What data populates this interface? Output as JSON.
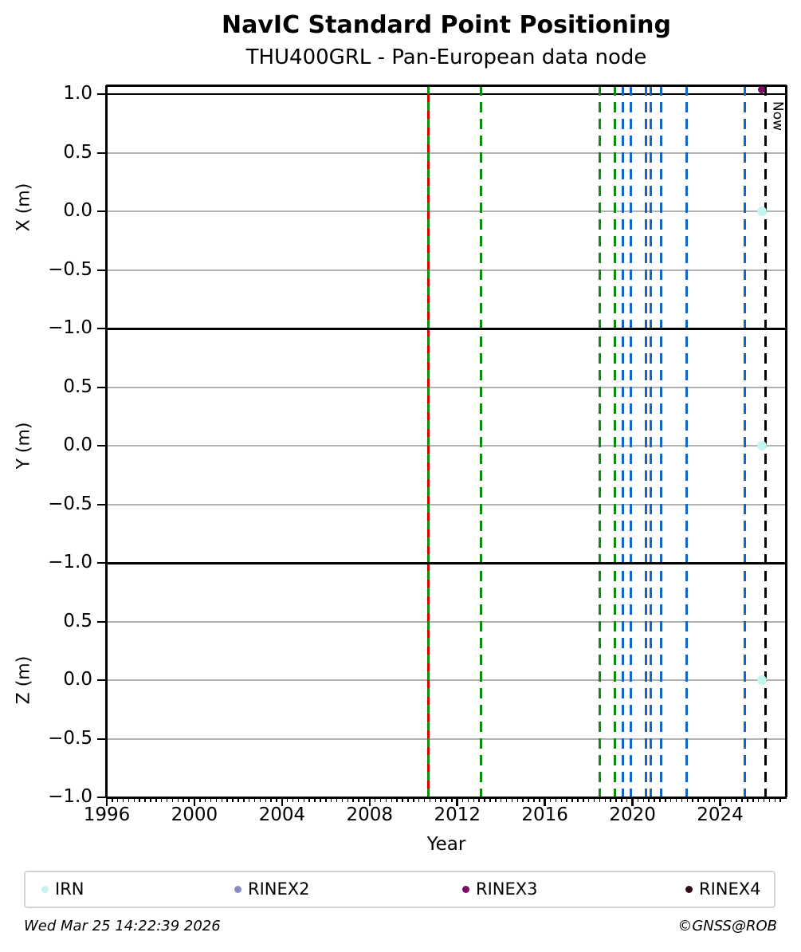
{
  "footer": {
    "timestamp": "Wed Mar 25 14:22:39 2026",
    "credit": "©GNSS@ROB"
  },
  "legend": {
    "items": [
      {
        "label": "IRN",
        "color": "#c4f4ee"
      },
      {
        "label": "RINEX2",
        "color": "#8c8cc2"
      },
      {
        "label": "RINEX3",
        "color": "#7c0a64"
      },
      {
        "label": "RINEX4",
        "color": "#2e0b1d"
      }
    ]
  },
  "chart_data": {
    "type": "scatter",
    "title": "NavIC Standard Point Positioning",
    "subtitle": "THU400GRL - Pan-European data node",
    "xlabel": "Year",
    "xlim": [
      1996,
      2027
    ],
    "x_major_ticks": [
      1996,
      2000,
      2004,
      2008,
      2012,
      2016,
      2020,
      2024
    ],
    "x_minor_step": 0.25,
    "grid_on": true,
    "grid_color": "#b2b2b2",
    "axis_color": "#000000",
    "now_label": "Now",
    "now_x": 2026.08,
    "legend_position": "bottom",
    "subplots": [
      {
        "ylabel": "X (m)",
        "ylim": [
          -1.0,
          1.075
        ],
        "yticks": [
          {
            "v": 1.0,
            "label": "1.0"
          },
          {
            "v": 0.5,
            "label": "0.5"
          },
          {
            "v": 0.0,
            "label": "0.0"
          },
          {
            "v": -0.5,
            "label": "−0.5"
          },
          {
            "v": -1.0,
            "label": "−1.0"
          }
        ],
        "hlines": [
          {
            "y": 1.0,
            "color": "#000000"
          }
        ],
        "points": [
          {
            "x": 2025.9,
            "y": 1.04,
            "series": "RINEX3",
            "size": 9
          },
          {
            "x": 2025.9,
            "y": 0.0,
            "series": "IRN",
            "size": 12
          }
        ]
      },
      {
        "ylabel": "Y (m)",
        "ylim": [
          -1.0,
          1.0
        ],
        "yticks": [
          {
            "v": 0.5,
            "label": "0.5"
          },
          {
            "v": 0.0,
            "label": "0.0"
          },
          {
            "v": -0.5,
            "label": "−0.5"
          },
          {
            "v": -1.0,
            "label": "−1.0"
          }
        ],
        "hlines": [],
        "points": [
          {
            "x": 2025.9,
            "y": 0.0,
            "series": "IRN",
            "size": 12
          }
        ]
      },
      {
        "ylabel": "Z (m)",
        "ylim": [
          -1.0,
          1.0
        ],
        "yticks": [
          {
            "v": 0.5,
            "label": "0.5"
          },
          {
            "v": 0.0,
            "label": "0.0"
          },
          {
            "v": -0.5,
            "label": "−0.5"
          },
          {
            "v": -1.0,
            "label": "−1.0"
          }
        ],
        "hlines": [],
        "points": [
          {
            "x": 2025.9,
            "y": 0.0,
            "series": "IRN",
            "size": 12
          }
        ]
      }
    ],
    "vlines": [
      {
        "x": 2010.67,
        "colors": [
          "#0e8b0e",
          "#d40000"
        ],
        "style": "dashed"
      },
      {
        "x": 2013.07,
        "colors": [
          "#0e8b0e"
        ],
        "style": "dashed"
      },
      {
        "x": 2018.5,
        "colors": [
          "#0e8b0e"
        ],
        "style": "dashed"
      },
      {
        "x": 2019.2,
        "colors": [
          "#0e8b0e"
        ],
        "style": "dashed"
      },
      {
        "x": 2019.55,
        "colors": [
          "#1467c8"
        ],
        "style": "dashed"
      },
      {
        "x": 2019.93,
        "colors": [
          "#1467c8"
        ],
        "style": "dashed"
      },
      {
        "x": 2020.6,
        "colors": [
          "#1467c8"
        ],
        "style": "dashed"
      },
      {
        "x": 2020.82,
        "colors": [
          "#1467c8"
        ],
        "style": "dashed"
      },
      {
        "x": 2021.3,
        "colors": [
          "#1467c8"
        ],
        "style": "dashed"
      },
      {
        "x": 2022.48,
        "colors": [
          "#1467c8"
        ],
        "style": "dashed"
      },
      {
        "x": 2025.12,
        "colors": [
          "#1467c8"
        ],
        "style": "dashed"
      },
      {
        "x": 2026.08,
        "colors": [
          "#000000"
        ],
        "style": "dashed",
        "label": "Now"
      }
    ]
  }
}
